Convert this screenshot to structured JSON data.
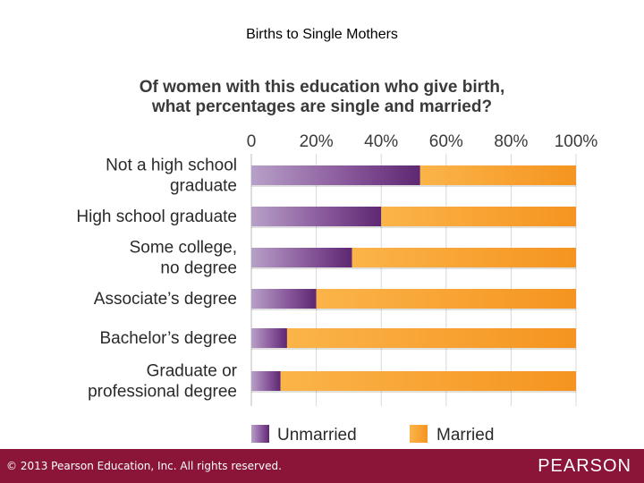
{
  "slide": {
    "title": "Births to Single Mothers"
  },
  "chart_data": {
    "type": "bar",
    "orientation": "horizontal",
    "stacked": true,
    "title": [
      "Of women with this education who give birth,",
      "what percentages are single and married?"
    ],
    "categories": [
      [
        "Not a high school",
        "graduate"
      ],
      [
        "High school graduate"
      ],
      [
        "Some college,",
        "no degree"
      ],
      [
        "Associate’s degree"
      ],
      [
        "Bachelor’s degree"
      ],
      [
        "Graduate or",
        "professional degree"
      ]
    ],
    "series": [
      {
        "name": "Unmarried",
        "color": "#6b2d7b",
        "values": [
          52,
          40,
          31,
          20,
          11,
          9
        ]
      },
      {
        "name": "Married",
        "color": "#f7a12a",
        "values": [
          48,
          60,
          69,
          80,
          89,
          91
        ]
      }
    ],
    "xlim": [
      0,
      100
    ],
    "ticks": [
      "0",
      "20%",
      "40%",
      "60%",
      "80%",
      "100%"
    ],
    "tick_values": [
      0,
      20,
      40,
      60,
      80,
      100
    ],
    "legend": "bottom",
    "grid": true
  },
  "footer": {
    "copyright": "© 2013  Pearson Education, Inc. All rights reserved.",
    "brand": "PEARSON"
  }
}
